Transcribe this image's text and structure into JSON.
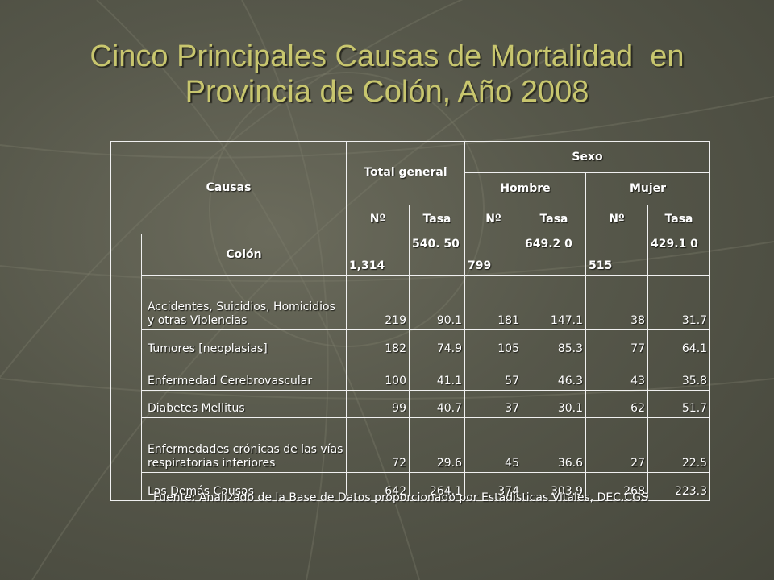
{
  "slide": {
    "title_line1": "Cinco Principales Causas de Mortalidad  en",
    "title_line2": "Provincia  de Colón, Año 2008",
    "source": "Fuente: Analizado de la Base de Datos proporcionado por Estadísticas Vitales,   DEC.CGS"
  },
  "colors": {
    "title": "#c8c66e",
    "text": "#ffffff",
    "background": "#56574a"
  },
  "table": {
    "headers": {
      "causas": "Causas",
      "total_general": "Total general",
      "sexo": "Sexo",
      "hombre": "Hombre",
      "mujer": "Mujer",
      "no": "Nº",
      "tasa": "Tasa"
    },
    "colon": {
      "label": "Colón",
      "total_n": "1,314",
      "total_tasa": "540. 50",
      "hombre_n": "799",
      "hombre_tasa": "649.2 0",
      "mujer_n": "515",
      "mujer_tasa": "429.1 0"
    },
    "rows": [
      {
        "causa": "Accidentes, Suicidios, Homicidios y otras Violencias",
        "total_n": "219",
        "total_tasa": "90.1",
        "hombre_n": "181",
        "hombre_tasa": "147.1",
        "mujer_n": "38",
        "mujer_tasa": "31.7"
      },
      {
        "causa": "Tumores [neoplasias]",
        "total_n": "182",
        "total_tasa": "74.9",
        "hombre_n": "105",
        "hombre_tasa": "85.3",
        "mujer_n": "77",
        "mujer_tasa": "64.1"
      },
      {
        "causa": "Enfermedad Cerebrovascular",
        "total_n": "100",
        "total_tasa": "41.1",
        "hombre_n": "57",
        "hombre_tasa": "46.3",
        "mujer_n": "43",
        "mujer_tasa": "35.8"
      },
      {
        "causa": "Diabetes Mellitus",
        "total_n": "99",
        "total_tasa": "40.7",
        "hombre_n": "37",
        "hombre_tasa": "30.1",
        "mujer_n": "62",
        "mujer_tasa": "51.7"
      },
      {
        "causa": "Enfermedades crónicas de las vías respiratorias inferiores",
        "total_n": "72",
        "total_tasa": "29.6",
        "hombre_n": "45",
        "hombre_tasa": "36.6",
        "mujer_n": "27",
        "mujer_tasa": "22.5"
      },
      {
        "causa": "Las Demás Causas",
        "total_n": "642",
        "total_tasa": "264.1",
        "hombre_n": "374",
        "hombre_tasa": "303.9",
        "mujer_n": "268",
        "mujer_tasa": "223.3"
      }
    ]
  }
}
